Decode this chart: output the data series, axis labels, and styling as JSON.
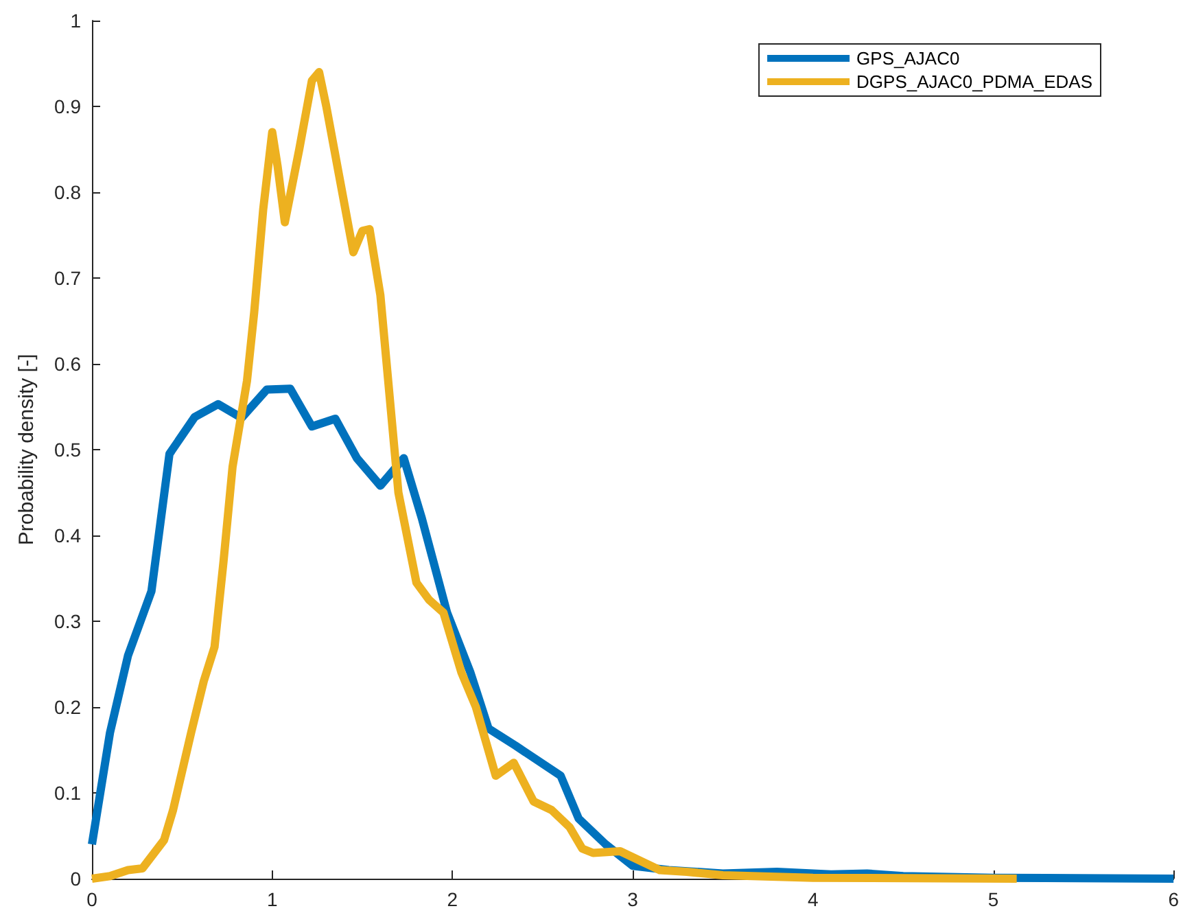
{
  "chart_data": {
    "type": "line",
    "ylabel": "Probability density [-]",
    "xlim": [
      0,
      6
    ],
    "ylim": [
      0,
      1
    ],
    "xticks": [
      0,
      1,
      2,
      3,
      4,
      5,
      6
    ],
    "yticks": [
      0,
      0.1,
      0.2,
      0.3,
      0.4,
      0.5,
      0.6,
      0.7,
      0.8,
      0.9,
      1
    ],
    "grid": false,
    "legend": "top right",
    "marker": "none",
    "line_style": "solid",
    "series": [
      {
        "name": "GPS_AJAC0",
        "color": "#0072bd",
        "x": [
          0,
          0.1,
          0.2,
          0.33,
          0.43,
          0.57,
          0.7,
          0.83,
          0.97,
          1.1,
          1.22,
          1.35,
          1.47,
          1.6,
          1.73,
          1.83,
          1.97,
          2.1,
          2.2,
          2.35,
          2.6,
          2.7,
          2.85,
          3.0,
          3.2,
          3.5,
          3.8,
          4.1,
          4.3,
          4.5,
          5.0,
          6
        ],
        "values": [
          0.04,
          0.17,
          0.26,
          0.335,
          0.495,
          0.538,
          0.553,
          0.537,
          0.57,
          0.571,
          0.527,
          0.536,
          0.49,
          0.458,
          0.49,
          0.42,
          0.31,
          0.24,
          0.175,
          0.155,
          0.12,
          0.07,
          0.04,
          0.015,
          0.01,
          0.006,
          0.008,
          0.005,
          0.006,
          0.003,
          0.001,
          0
        ]
      },
      {
        "name": "DGPS_AJAC0_PDMA_EDAS",
        "color": "#edb120",
        "x": [
          0,
          0.1,
          0.2,
          0.28,
          0.4,
          0.45,
          0.55,
          0.62,
          0.68,
          0.73,
          0.78,
          0.86,
          0.9,
          0.95,
          1.0,
          1.03,
          1.07,
          1.15,
          1.22,
          1.26,
          1.3,
          1.45,
          1.5,
          1.54,
          1.6,
          1.7,
          1.8,
          1.87,
          1.95,
          2.05,
          2.13,
          2.24,
          2.34,
          2.45,
          2.55,
          2.65,
          2.72,
          2.78,
          2.93,
          3.05,
          3.15,
          3.3,
          3.5,
          4,
          5.13
        ],
        "values": [
          0,
          0.003,
          0.01,
          0.012,
          0.045,
          0.08,
          0.17,
          0.23,
          0.27,
          0.37,
          0.48,
          0.58,
          0.66,
          0.78,
          0.87,
          0.83,
          0.765,
          0.85,
          0.93,
          0.94,
          0.9,
          0.73,
          0.755,
          0.757,
          0.68,
          0.45,
          0.345,
          0.325,
          0.31,
          0.24,
          0.2,
          0.12,
          0.135,
          0.09,
          0.08,
          0.06,
          0.035,
          0.03,
          0.032,
          0.02,
          0.01,
          0.008,
          0.004,
          0.001,
          0
        ]
      }
    ]
  }
}
